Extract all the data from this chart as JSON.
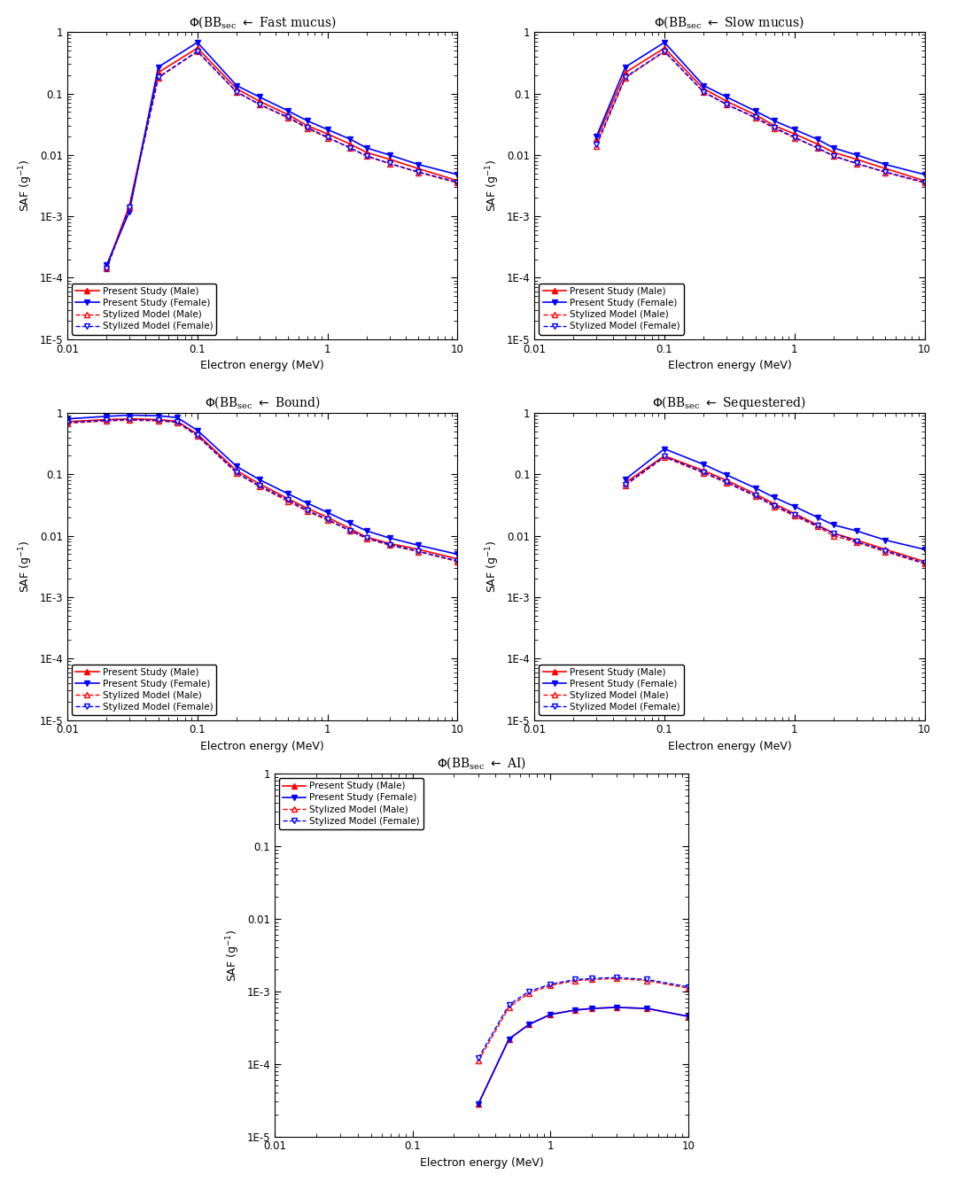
{
  "plots": [
    {
      "title": "Fast mucus",
      "present_male": {
        "x": [
          0.02,
          0.03,
          0.05,
          0.1,
          0.2,
          0.3,
          0.5,
          0.7,
          1.0,
          1.5,
          2.0,
          3.0,
          5.0,
          10.0
        ],
        "y": [
          0.00015,
          0.0015,
          0.22,
          0.55,
          0.12,
          0.075,
          0.045,
          0.03,
          0.022,
          0.015,
          0.011,
          0.0085,
          0.006,
          0.0038
        ]
      },
      "present_female": {
        "x": [
          0.02,
          0.03,
          0.05,
          0.1,
          0.2,
          0.3,
          0.5,
          0.7,
          1.0,
          1.5,
          2.0,
          3.0,
          5.0,
          10.0
        ],
        "y": [
          0.00016,
          0.0012,
          0.27,
          0.68,
          0.135,
          0.088,
          0.052,
          0.036,
          0.026,
          0.018,
          0.013,
          0.01,
          0.007,
          0.0048
        ]
      },
      "stylized_male": {
        "x": [
          0.02,
          0.03,
          0.05,
          0.1,
          0.2,
          0.3,
          0.5,
          0.7,
          1.0,
          1.5,
          2.0,
          3.0,
          5.0,
          10.0
        ],
        "y": [
          0.00014,
          0.0014,
          0.18,
          0.48,
          0.105,
          0.066,
          0.04,
          0.027,
          0.019,
          0.013,
          0.0095,
          0.0072,
          0.0052,
          0.0035
        ]
      },
      "stylized_female": {
        "x": [
          0.02,
          0.03,
          0.05,
          0.1,
          0.2,
          0.3,
          0.5,
          0.7,
          1.0,
          1.5,
          2.0,
          3.0,
          5.0,
          10.0
        ],
        "y": [
          0.00014,
          0.0014,
          0.185,
          0.49,
          0.107,
          0.067,
          0.041,
          0.028,
          0.0195,
          0.013,
          0.0097,
          0.0073,
          0.0053,
          0.0036
        ]
      },
      "ylim": [
        1e-05,
        1
      ],
      "xlim": [
        0.01,
        10
      ],
      "legend_loc": "lower left"
    },
    {
      "title": "Slow mucus",
      "present_male": {
        "x": [
          0.03,
          0.05,
          0.1,
          0.2,
          0.3,
          0.5,
          0.7,
          1.0,
          1.5,
          2.0,
          3.0,
          5.0,
          10.0
        ],
        "y": [
          0.018,
          0.22,
          0.55,
          0.12,
          0.075,
          0.045,
          0.03,
          0.022,
          0.015,
          0.011,
          0.0085,
          0.006,
          0.0038
        ]
      },
      "present_female": {
        "x": [
          0.03,
          0.05,
          0.1,
          0.2,
          0.3,
          0.5,
          0.7,
          1.0,
          1.5,
          2.0,
          3.0,
          5.0,
          10.0
        ],
        "y": [
          0.02,
          0.27,
          0.68,
          0.135,
          0.088,
          0.052,
          0.036,
          0.026,
          0.018,
          0.013,
          0.01,
          0.007,
          0.0048
        ]
      },
      "stylized_male": {
        "x": [
          0.03,
          0.05,
          0.1,
          0.2,
          0.3,
          0.5,
          0.7,
          1.0,
          1.5,
          2.0,
          3.0,
          5.0,
          10.0
        ],
        "y": [
          0.014,
          0.18,
          0.48,
          0.105,
          0.066,
          0.04,
          0.027,
          0.019,
          0.013,
          0.0095,
          0.0072,
          0.0052,
          0.0035
        ]
      },
      "stylized_female": {
        "x": [
          0.03,
          0.05,
          0.1,
          0.2,
          0.3,
          0.5,
          0.7,
          1.0,
          1.5,
          2.0,
          3.0,
          5.0,
          10.0
        ],
        "y": [
          0.015,
          0.185,
          0.49,
          0.107,
          0.067,
          0.041,
          0.028,
          0.0195,
          0.013,
          0.0097,
          0.0073,
          0.0053,
          0.0036
        ]
      },
      "ylim": [
        1e-05,
        1
      ],
      "xlim": [
        0.01,
        10
      ],
      "legend_loc": "lower left"
    },
    {
      "title": "Bound",
      "present_male": {
        "x": [
          0.01,
          0.02,
          0.03,
          0.05,
          0.07,
          0.1,
          0.2,
          0.3,
          0.5,
          0.7,
          1.0,
          1.5,
          2.0,
          3.0,
          5.0,
          10.0
        ],
        "y": [
          0.72,
          0.78,
          0.8,
          0.78,
          0.73,
          0.45,
          0.115,
          0.07,
          0.04,
          0.028,
          0.02,
          0.013,
          0.0095,
          0.0075,
          0.006,
          0.0042
        ]
      },
      "present_female": {
        "x": [
          0.01,
          0.02,
          0.03,
          0.05,
          0.07,
          0.1,
          0.2,
          0.3,
          0.5,
          0.7,
          1.0,
          1.5,
          2.0,
          3.0,
          5.0,
          10.0
        ],
        "y": [
          0.8,
          0.88,
          0.92,
          0.9,
          0.84,
          0.52,
          0.135,
          0.082,
          0.048,
          0.034,
          0.024,
          0.016,
          0.012,
          0.0092,
          0.007,
          0.005
        ]
      },
      "stylized_male": {
        "x": [
          0.01,
          0.02,
          0.03,
          0.05,
          0.07,
          0.1,
          0.2,
          0.3,
          0.5,
          0.7,
          1.0,
          1.5,
          2.0,
          3.0,
          5.0,
          10.0
        ],
        "y": [
          0.68,
          0.74,
          0.76,
          0.74,
          0.7,
          0.42,
          0.105,
          0.063,
          0.036,
          0.025,
          0.018,
          0.012,
          0.009,
          0.007,
          0.0055,
          0.0038
        ]
      },
      "stylized_female": {
        "x": [
          0.01,
          0.02,
          0.03,
          0.05,
          0.07,
          0.1,
          0.2,
          0.3,
          0.5,
          0.7,
          1.0,
          1.5,
          2.0,
          3.0,
          5.0,
          10.0
        ],
        "y": [
          0.7,
          0.76,
          0.78,
          0.76,
          0.71,
          0.43,
          0.107,
          0.065,
          0.038,
          0.026,
          0.0185,
          0.012,
          0.0092,
          0.0072,
          0.0056,
          0.0039
        ]
      },
      "ylim": [
        1e-05,
        1
      ],
      "xlim": [
        0.01,
        10
      ],
      "legend_loc": "lower left"
    },
    {
      "title": "Sequestered",
      "present_male": {
        "x": [
          0.05,
          0.1,
          0.2,
          0.3,
          0.5,
          0.7,
          1.0,
          1.5,
          2.0,
          3.0,
          5.0,
          10.0
        ],
        "y": [
          0.073,
          0.2,
          0.115,
          0.08,
          0.048,
          0.033,
          0.023,
          0.015,
          0.011,
          0.0085,
          0.006,
          0.0038
        ]
      },
      "present_female": {
        "x": [
          0.05,
          0.1,
          0.2,
          0.3,
          0.5,
          0.7,
          1.0,
          1.5,
          2.0,
          3.0,
          5.0,
          10.0
        ],
        "y": [
          0.083,
          0.26,
          0.145,
          0.098,
          0.06,
          0.042,
          0.03,
          0.02,
          0.015,
          0.012,
          0.0085,
          0.006
        ]
      },
      "stylized_male": {
        "x": [
          0.05,
          0.1,
          0.2,
          0.3,
          0.5,
          0.7,
          1.0,
          1.5,
          2.0,
          3.0,
          5.0,
          10.0
        ],
        "y": [
          0.066,
          0.19,
          0.105,
          0.073,
          0.044,
          0.03,
          0.021,
          0.014,
          0.01,
          0.0078,
          0.0055,
          0.0035
        ]
      },
      "stylized_female": {
        "x": [
          0.05,
          0.1,
          0.2,
          0.3,
          0.5,
          0.7,
          1.0,
          1.5,
          2.0,
          3.0,
          5.0,
          10.0
        ],
        "y": [
          0.068,
          0.195,
          0.108,
          0.075,
          0.045,
          0.031,
          0.022,
          0.0145,
          0.011,
          0.008,
          0.0057,
          0.0036
        ]
      },
      "ylim": [
        1e-05,
        1
      ],
      "xlim": [
        0.01,
        10
      ],
      "legend_loc": "lower left"
    },
    {
      "title": "AI",
      "present_male": {
        "x": [
          0.3,
          0.5,
          0.7,
          1.0,
          1.5,
          2.0,
          3.0,
          5.0,
          10.0
        ],
        "y": [
          2.8e-05,
          0.00022,
          0.00035,
          0.00048,
          0.00055,
          0.00058,
          0.0006,
          0.00058,
          0.00045
        ]
      },
      "present_female": {
        "x": [
          0.3,
          0.5,
          0.7,
          1.0,
          1.5,
          2.0,
          3.0,
          5.0,
          10.0
        ],
        "y": [
          2.8e-05,
          0.00022,
          0.00035,
          0.00048,
          0.00055,
          0.00058,
          0.0006,
          0.00058,
          0.00045
        ]
      },
      "stylized_male": {
        "x": [
          0.3,
          0.5,
          0.7,
          1.0,
          1.5,
          2.0,
          3.0,
          5.0,
          10.0
        ],
        "y": [
          0.00011,
          0.0006,
          0.00095,
          0.0012,
          0.0014,
          0.00145,
          0.0015,
          0.0014,
          0.0011
        ]
      },
      "stylized_female": {
        "x": [
          0.3,
          0.5,
          0.7,
          1.0,
          1.5,
          2.0,
          3.0,
          5.0,
          10.0
        ],
        "y": [
          0.00012,
          0.00065,
          0.001,
          0.00125,
          0.00145,
          0.0015,
          0.00155,
          0.00145,
          0.00115
        ]
      },
      "ylim": [
        1e-05,
        1
      ],
      "xlim": [
        0.01,
        10
      ],
      "legend_loc": "upper left"
    }
  ],
  "legend_labels": [
    "Present Study (Male)",
    "Present Study (Female)",
    "Stylized Model (Male)",
    "Stylized Model (Female)"
  ],
  "color_red": "#ff0000",
  "color_blue": "#0000ff",
  "xlabel": "Electron energy (MeV)",
  "ylabel": "SAF (g$^{-1}$)"
}
